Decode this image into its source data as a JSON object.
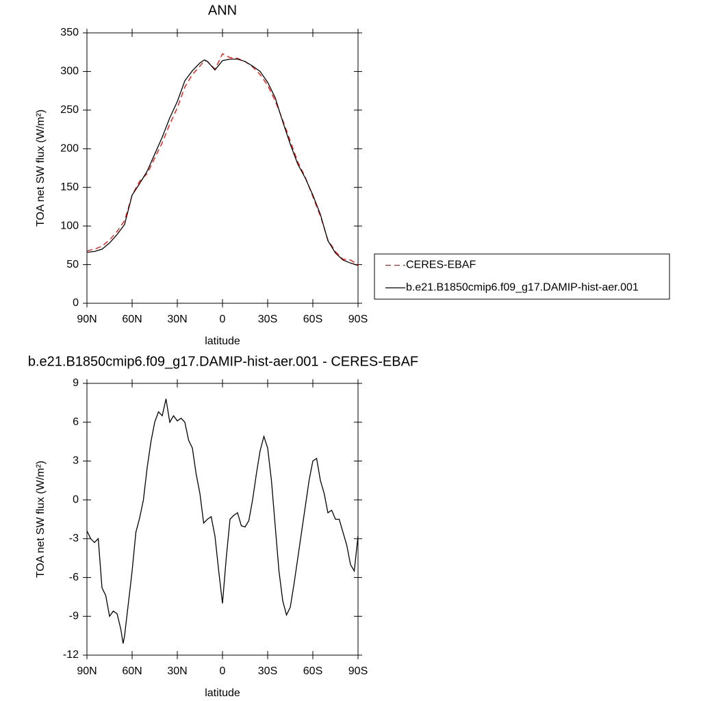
{
  "chart_data": [
    {
      "type": "line",
      "title": "ANN",
      "xlabel": "latitude",
      "ylabel": "TOA net SW flux (W/m²)",
      "x": [
        90,
        85,
        80,
        75,
        70,
        65,
        60,
        55,
        50,
        45,
        40,
        35,
        30,
        25,
        20,
        15,
        12,
        10,
        5,
        0,
        -5,
        -10,
        -15,
        -20,
        -25,
        -30,
        -35,
        -40,
        -45,
        -50,
        -55,
        -60,
        -65,
        -70,
        -75,
        -80,
        -85,
        -90
      ],
      "series": [
        {
          "name": "CERES-EBAF",
          "color": "#ff0000",
          "dashed": true,
          "values": [
            68,
            70,
            74,
            82,
            93,
            107,
            140,
            158,
            168,
            188,
            208,
            232,
            253,
            280,
            296,
            307,
            314,
            313,
            303,
            323,
            318,
            317,
            313,
            306,
            296,
            282,
            262,
            237,
            210,
            183,
            163,
            138,
            113,
            82,
            67,
            57,
            56,
            50
          ]
        },
        {
          "name": "b.e21.B1850cmip6.f09_g17.DAMIP-hist-aer.001",
          "color": "#000000",
          "dashed": false,
          "values": [
            66,
            67,
            70,
            78,
            89,
            102,
            140,
            155,
            171,
            193,
            215,
            240,
            261,
            288,
            301,
            311,
            315,
            313,
            302,
            314,
            316,
            316,
            313,
            307,
            300,
            286,
            266,
            235,
            206,
            180,
            162,
            140,
            115,
            81,
            65,
            56,
            52,
            49
          ]
        }
      ],
      "xlim": [
        90,
        -90
      ],
      "xticks": [
        {
          "value": 90,
          "label": "90N"
        },
        {
          "value": 60,
          "label": "60N"
        },
        {
          "value": 30,
          "label": "30N"
        },
        0,
        {
          "value": -30,
          "label": "30S"
        },
        {
          "value": -60,
          "label": "60S"
        },
        {
          "value": -90,
          "label": "90S"
        }
      ],
      "ylim": [
        0,
        350
      ],
      "yticks": [
        0,
        50,
        100,
        150,
        200,
        250,
        300,
        350
      ],
      "legend": "right"
    },
    {
      "type": "line",
      "title": "b.e21.B1850cmip6.f09_g17.DAMIP-hist-aer.001 - CERES-EBAF",
      "xlabel": "latitude",
      "ylabel": "TOA net SW flux (W/m²)",
      "x": [
        90,
        87.5,
        85,
        82.5,
        80,
        77.5,
        75,
        72.5,
        70,
        67.5,
        66,
        65,
        62.5,
        60,
        57.5,
        55,
        52.5,
        50,
        47.5,
        45,
        42.5,
        40,
        37.5,
        35,
        32.5,
        30,
        27.5,
        25,
        22.5,
        20,
        17.5,
        15,
        12.5,
        10,
        7.5,
        5,
        2.5,
        0,
        -2.5,
        -5,
        -7.5,
        -10,
        -12.5,
        -15,
        -17.5,
        -20,
        -22.5,
        -25,
        -27.5,
        -30,
        -32.5,
        -35,
        -37.5,
        -40,
        -42.5,
        -45,
        -47.5,
        -50,
        -52.5,
        -55,
        -57.5,
        -60,
        -62.5,
        -65,
        -67.5,
        -70,
        -72.5,
        -75,
        -77.5,
        -80,
        -82.5,
        -85,
        -87.5,
        -90
      ],
      "color": "#000000",
      "values": [
        -2.4,
        -3.0,
        -3.3,
        -3.0,
        -6.8,
        -7.4,
        -9.0,
        -8.6,
        -8.8,
        -10.0,
        -11.1,
        -10.5,
        -8.0,
        -5.5,
        -2.5,
        -1.4,
        0.0,
        2.5,
        4.5,
        6.0,
        6.8,
        6.5,
        7.8,
        6.0,
        6.5,
        6.1,
        6.3,
        6.0,
        4.6,
        4.0,
        2.0,
        0.5,
        -1.8,
        -1.5,
        -1.3,
        -2.8,
        -5.5,
        -8.0,
        -4.5,
        -1.5,
        -1.2,
        -1.0,
        -2.0,
        -2.1,
        -1.6,
        0.0,
        2.0,
        3.8,
        4.9,
        4.0,
        1.5,
        -2.0,
        -5.5,
        -7.8,
        -8.9,
        -8.3,
        -6.5,
        -4.5,
        -2.5,
        -0.5,
        1.5,
        3.0,
        3.2,
        1.5,
        0.5,
        -1.0,
        -0.8,
        -1.5,
        -1.5,
        -2.5,
        -3.5,
        -5.0,
        -5.5,
        -2.8
      ],
      "xlim": [
        90,
        -90
      ],
      "xticks": [
        {
          "value": 90,
          "label": "90N"
        },
        {
          "value": 60,
          "label": "60N"
        },
        {
          "value": 30,
          "label": "30N"
        },
        0,
        {
          "value": -30,
          "label": "30S"
        },
        {
          "value": -60,
          "label": "60S"
        },
        {
          "value": -90,
          "label": "90S"
        }
      ],
      "ylim": [
        -12,
        9
      ],
      "yticks": [
        -12,
        -9,
        -6,
        -3,
        0,
        3,
        6,
        9
      ]
    }
  ]
}
